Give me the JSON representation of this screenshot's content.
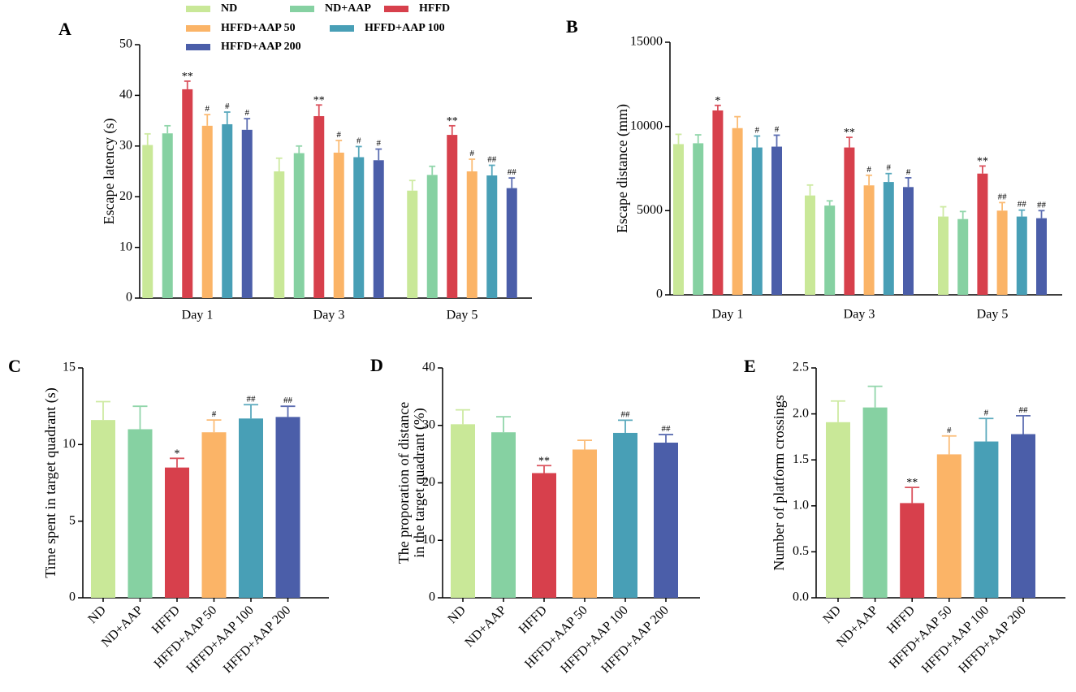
{
  "colors": {
    "ND": "#c9e898",
    "ND+AAP": "#86d1a2",
    "HFFD": "#d7404c",
    "HFFD+AAP 50": "#fbb467",
    "HFFD+AAP 100": "#489fb6",
    "HFFD+AAP 200": "#4b5ea9"
  },
  "legend": [
    "ND",
    "ND+AAP",
    "HFFD",
    "HFFD+AAP 50",
    "HFFD+AAP 100",
    "HFFD+AAP 200"
  ],
  "chart_data": [
    {
      "panel": "A",
      "type": "bar",
      "ylabel": "Escape latency (s)",
      "ylim": [
        0,
        50
      ],
      "yticks": [
        0,
        10,
        20,
        30,
        40,
        50
      ],
      "categories": [
        "Day 1",
        "Day 3",
        "Day 5"
      ],
      "series": [
        {
          "name": "ND",
          "values": [
            30.2,
            25.0,
            21.2
          ],
          "errors": [
            2.2,
            2.6,
            2.0
          ],
          "marks": [
            "",
            "",
            ""
          ]
        },
        {
          "name": "ND+AAP",
          "values": [
            32.5,
            28.6,
            24.3
          ],
          "errors": [
            1.5,
            1.4,
            1.7
          ],
          "marks": [
            "",
            "",
            ""
          ]
        },
        {
          "name": "HFFD",
          "values": [
            41.2,
            35.9,
            32.2
          ],
          "errors": [
            1.6,
            2.2,
            1.8
          ],
          "marks": [
            "**",
            "**",
            "**"
          ]
        },
        {
          "name": "HFFD+AAP 50",
          "values": [
            34.0,
            28.7,
            25.0
          ],
          "errors": [
            2.2,
            2.4,
            2.4
          ],
          "marks": [
            "#",
            "#",
            "#"
          ]
        },
        {
          "name": "HFFD+AAP 100",
          "values": [
            34.3,
            27.8,
            24.2
          ],
          "errors": [
            2.4,
            2.1,
            2.0
          ],
          "marks": [
            "#",
            "#",
            "##"
          ]
        },
        {
          "name": "HFFD+AAP 200",
          "values": [
            33.2,
            27.2,
            21.7
          ],
          "errors": [
            2.2,
            2.2,
            2.0
          ],
          "marks": [
            "#",
            "#",
            "##"
          ]
        }
      ]
    },
    {
      "panel": "B",
      "type": "bar",
      "ylabel": "Escape distance (mm)",
      "ylim": [
        0,
        15000
      ],
      "yticks": [
        0,
        5000,
        10000,
        15000
      ],
      "categories": [
        "Day 1",
        "Day 3",
        "Day 5"
      ],
      "series": [
        {
          "name": "ND",
          "values": [
            8950,
            5900,
            4650
          ],
          "errors": [
            580,
            620,
            580
          ],
          "marks": [
            "",
            "",
            ""
          ]
        },
        {
          "name": "ND+AAP",
          "values": [
            9000,
            5300,
            4500
          ],
          "errors": [
            500,
            280,
            450
          ],
          "marks": [
            "",
            "",
            ""
          ]
        },
        {
          "name": "HFFD",
          "values": [
            10950,
            8750,
            7200
          ],
          "errors": [
            300,
            600,
            450
          ],
          "marks": [
            "*",
            "**",
            "**"
          ]
        },
        {
          "name": "HFFD+AAP 50",
          "values": [
            9900,
            6500,
            5000
          ],
          "errors": [
            680,
            600,
            480
          ],
          "marks": [
            "",
            "#",
            "##"
          ]
        },
        {
          "name": "HFFD+AAP 100",
          "values": [
            8750,
            6700,
            4650
          ],
          "errors": [
            680,
            500,
            380
          ],
          "marks": [
            "#",
            "#",
            "##"
          ]
        },
        {
          "name": "HFFD+AAP 200",
          "values": [
            8800,
            6400,
            4550
          ],
          "errors": [
            680,
            550,
            450
          ],
          "marks": [
            "#",
            "#",
            "##"
          ]
        }
      ]
    },
    {
      "panel": "C",
      "type": "bar",
      "ylabel": "Time spent in target quadrant (s)",
      "ylim": [
        0,
        15
      ],
      "yticks": [
        0,
        5,
        10,
        15
      ],
      "categories": [
        "ND",
        "ND+AAP",
        "HFFD",
        "HFFD+AAP 50",
        "HFFD+AAP 100",
        "HFFD+AAP 200"
      ],
      "values": [
        11.6,
        11.0,
        8.5,
        10.8,
        11.7,
        11.8
      ],
      "errors": [
        1.2,
        1.5,
        0.6,
        0.8,
        0.9,
        0.7
      ],
      "marks": [
        "",
        "",
        "*",
        "#",
        "##",
        "##"
      ]
    },
    {
      "panel": "D",
      "type": "bar",
      "ylabel_lines": [
        "The proporation of distance",
        "in the target quadrant (%)"
      ],
      "ylim": [
        0,
        40
      ],
      "yticks": [
        0,
        10,
        20,
        30,
        40
      ],
      "categories": [
        "ND",
        "ND+AAP",
        "HFFD",
        "HFFD+AAP 50",
        "HFFD+AAP 100",
        "HFFD+AAP 200"
      ],
      "values": [
        30.2,
        28.8,
        21.7,
        25.8,
        28.7,
        27.0
      ],
      "errors": [
        2.5,
        2.7,
        1.3,
        1.6,
        2.2,
        1.4
      ],
      "marks": [
        "",
        "",
        "**",
        "",
        "##",
        "##"
      ]
    },
    {
      "panel": "E",
      "type": "bar",
      "ylabel": "Number of  platform crossings",
      "ylim": [
        0,
        2.5
      ],
      "yticks": [
        "0.0",
        "0.5",
        "1.0",
        "1.5",
        "2.0",
        "2.5"
      ],
      "categories": [
        "ND",
        "ND+AAP",
        "HFFD",
        "HFFD+AAP 50",
        "HFFD+AAP 100",
        "HFFD+AAP 200"
      ],
      "values": [
        1.91,
        2.07,
        1.03,
        1.56,
        1.7,
        1.78
      ],
      "errors": [
        0.23,
        0.23,
        0.17,
        0.2,
        0.25,
        0.2
      ],
      "marks": [
        "",
        "",
        "**",
        "#",
        "#",
        "##"
      ]
    }
  ]
}
